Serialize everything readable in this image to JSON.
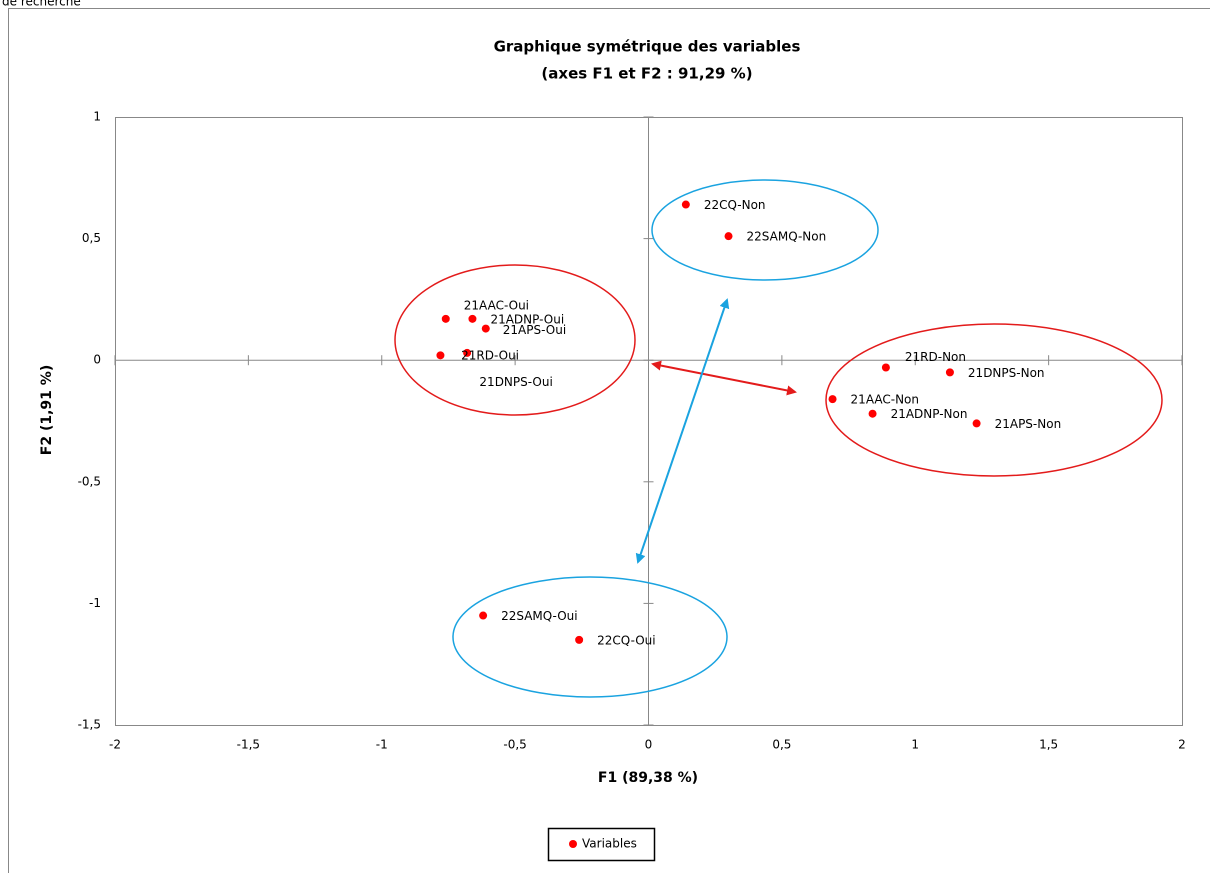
{
  "header_text": "de recherche",
  "chart_data": {
    "type": "scatter",
    "title": "Graphique symétrique des variables",
    "subtitle": "(axes F1 et F2 : 91,29 %)",
    "x_label": "F1 (89,38 %)",
    "y_label": "F2 (1,91 %)",
    "point_labels": [
      "21AAC-Oui",
      "21ADNP-Oui",
      "21APS-Oui",
      "21RD-Oui",
      "21DNPS-Oui",
      "21RD-Non",
      "21DNPS-Non",
      "21AAC-Non",
      "21ADNP-Non",
      "21APS-Non",
      "22CQ-Non",
      "22SAMQ-Non",
      "22SAMQ-Oui",
      "22CQ-Oui"
    ],
    "x": [
      -0.76,
      -0.66,
      -0.61,
      -0.68,
      -0.78,
      0.89,
      1.13,
      0.69,
      0.84,
      1.23,
      0.14,
      0.3,
      -0.62,
      -0.26
    ],
    "series": [
      {
        "name": "Variables",
        "color": "#ff0000",
        "values": [
          0.17,
          0.17,
          0.13,
          0.03,
          0.02,
          -0.03,
          -0.05,
          -0.16,
          -0.22,
          -0.26,
          0.64,
          0.51,
          -1.05,
          -1.15
        ]
      }
    ],
    "xlim": [
      -2,
      2
    ],
    "ylim": [
      -1.5,
      1
    ],
    "xticks": [
      -2,
      {
        "value": -1.5,
        "label": "-1,5"
      },
      -1,
      {
        "value": -0.5,
        "label": "-0,5"
      },
      0,
      {
        "value": 0.5,
        "label": "0,5"
      },
      1,
      {
        "value": 1.5,
        "label": "1,5"
      },
      2
    ],
    "yticks": [
      1,
      {
        "value": 0.5,
        "label": "0,5"
      },
      0,
      {
        "value": -0.5,
        "label": "-0,5"
      },
      -1,
      {
        "value": -1.5,
        "label": "-1,5"
      }
    ],
    "legend": "bottom"
  }
}
